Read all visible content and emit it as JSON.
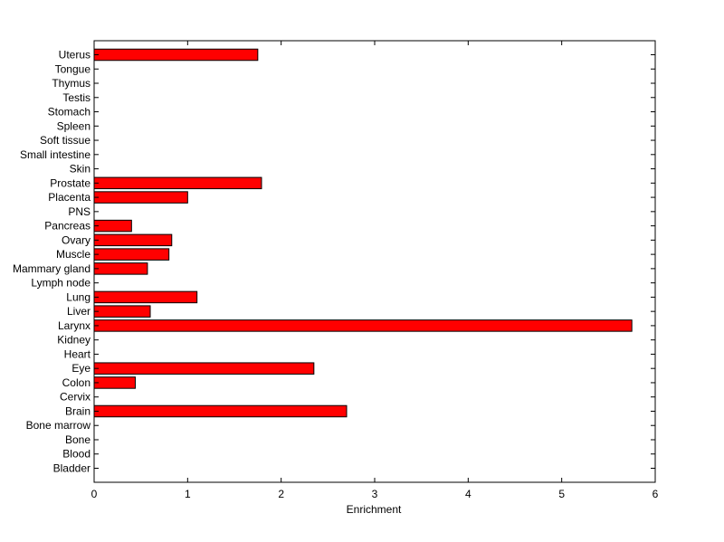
{
  "chart_data": {
    "type": "bar",
    "orientation": "horizontal",
    "title": "",
    "xlabel": "Enrichment",
    "ylabel": "",
    "xlim": [
      0,
      6
    ],
    "xticks": [
      0,
      1,
      2,
      3,
      4,
      5,
      6
    ],
    "grid": false,
    "legend": "none",
    "bar_color": "#ff0000",
    "bar_edge_color": "#000000",
    "categories": [
      "Bladder",
      "Blood",
      "Bone",
      "Bone marrow",
      "Brain",
      "Cervix",
      "Colon",
      "Eye",
      "Heart",
      "Kidney",
      "Larynx",
      "Liver",
      "Lung",
      "Lymph node",
      "Mammary gland",
      "Muscle",
      "Ovary",
      "Pancreas",
      "PNS",
      "Placenta",
      "Prostate",
      "Skin",
      "Small intestine",
      "Soft tissue",
      "Spleen",
      "Stomach",
      "Testis",
      "Thymus",
      "Tongue",
      "Uterus"
    ],
    "values": [
      0,
      0,
      0,
      0,
      2.7,
      0,
      0.44,
      2.35,
      0,
      0,
      5.75,
      0.6,
      1.1,
      0,
      0.57,
      0.8,
      0.83,
      0.4,
      0,
      1.0,
      1.79,
      0,
      0,
      0,
      0,
      0,
      0,
      0,
      0,
      1.75
    ]
  }
}
